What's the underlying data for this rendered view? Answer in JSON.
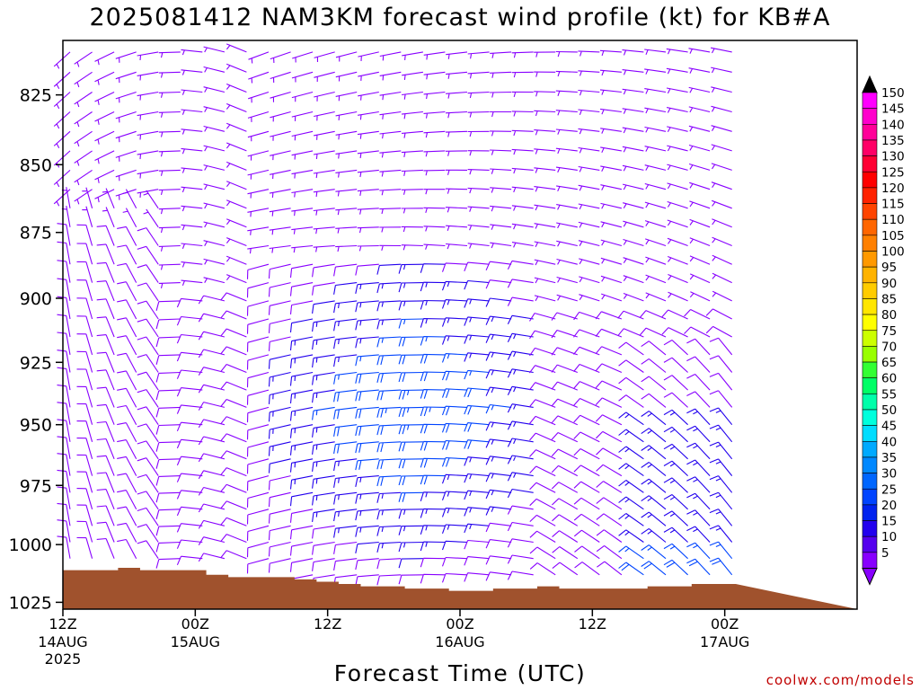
{
  "chart_data": {
    "type": "wind-barb time-height profile",
    "title": "2025081412 NAM3KM forecast wind profile (kt) for KB#A",
    "xlabel": "Forecast Time (UTC)",
    "ylabel": "",
    "credit": "coolwx.com/models",
    "units": "kt",
    "y_scale": "pressure (hPa)",
    "y_range": [
      1028,
      806
    ],
    "y_ticks": [
      825,
      850,
      875,
      900,
      925,
      950,
      975,
      1000,
      1025
    ],
    "x_range_hours": [
      0,
      36
    ],
    "x_ticks": [
      {
        "hour": 0,
        "time": "12Z",
        "date": "14AUG",
        "year": "2025"
      },
      {
        "hour": 6,
        "time": "00Z",
        "date": "15AUG",
        "year": ""
      },
      {
        "hour": 12,
        "time": "12Z",
        "date": "",
        "year": ""
      },
      {
        "hour": 18,
        "time": "00Z",
        "date": "16AUG",
        "year": ""
      },
      {
        "hour": 24,
        "time": "12Z",
        "date": "",
        "year": ""
      },
      {
        "hour": 30,
        "time": "00Z",
        "date": "17AUG",
        "year": ""
      }
    ],
    "x_tick_hours_note": "hours after 12Z 14AUG",
    "ground_pressure": {
      "hours": [
        0,
        1,
        2,
        3,
        4,
        5,
        6,
        7,
        8,
        9,
        10,
        11,
        12,
        13,
        14,
        15,
        16,
        17,
        18,
        19,
        20,
        21,
        22,
        23,
        24,
        25,
        26,
        27,
        28,
        29,
        30
      ],
      "pressure": [
        1011,
        1011,
        1011,
        1010,
        1011,
        1011,
        1011,
        1013,
        1014,
        1014,
        1014,
        1015,
        1016,
        1017,
        1018,
        1018,
        1019,
        1019,
        1020,
        1020,
        1019,
        1019,
        1018,
        1019,
        1019,
        1019,
        1019,
        1018,
        1018,
        1017,
        1017
      ]
    },
    "ground_color": "#a0522d",
    "legend": {
      "placement": "right",
      "labels": [
        "150",
        "145",
        "140",
        "135",
        "130",
        "125",
        "120",
        "115",
        "110",
        "105",
        "100",
        "95",
        "90",
        "85",
        "80",
        "75",
        "70",
        "65",
        "60",
        "55",
        "50",
        "45",
        "40",
        "35",
        "30",
        "25",
        "20",
        "15",
        "10",
        "5"
      ],
      "colors": [
        "#ff00ff",
        "#ff00cc",
        "#ff0099",
        "#ff0066",
        "#ff0033",
        "#ff0000",
        "#ff2200",
        "#ff4400",
        "#ff6600",
        "#ff8000",
        "#ff9900",
        "#ffb300",
        "#ffcc00",
        "#ffe600",
        "#ffff00",
        "#ccff00",
        "#99ff00",
        "#33ff33",
        "#00ff66",
        "#00ffaa",
        "#00ffdd",
        "#00ddff",
        "#00aaff",
        "#0088ff",
        "#0066ff",
        "#0044ff",
        "#0022ee",
        "#2200ee",
        "#5500ee",
        "#8800ff"
      ],
      "top_arrow_color": "#000000",
      "bottom_arrow_color": "#8800ff"
    },
    "barb_colors": {
      "light": "#8800ff",
      "moderate": "#2200ee",
      "strong": "#0044ff"
    },
    "wind_regimes": {
      "early_light_northerly_low_levels": "hours 0–5",
      "strengthening_westerly_jet": "hours 10–20, 900–975 hPa, 15–25 kt",
      "late_northwesterly_near_surface": "hours 27–30"
    }
  }
}
